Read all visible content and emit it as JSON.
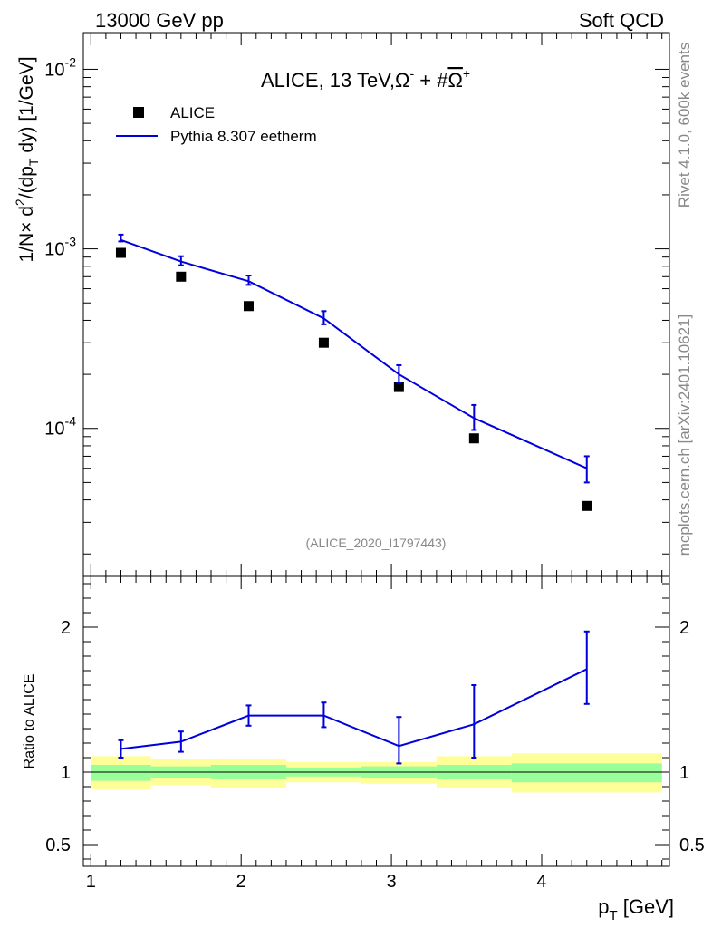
{
  "header": {
    "left": "13000 GeV pp",
    "right": "Soft QCD"
  },
  "side_labels": {
    "rivet": "Rivet 4.1.0,  600k events",
    "mcplots": "mcplots.cern.ch [arXiv:2401.10621]"
  },
  "chart_data": [
    {
      "type": "scatter",
      "panel": "main",
      "title": "ALICE, 13 TeV,Ω⁻ + #Ω̅⁺",
      "title_parts": {
        "main": "ALICE, 13 TeV,Ω",
        "sup1": "-",
        "mid": " + #",
        "omega_bar": "Ω",
        "sup2": "+"
      },
      "ylabel": "1/N× d²/(dp_T dy) [1/GeV]",
      "ylabel_parts": {
        "a": "1/N",
        "times": "×",
        "b": " d",
        "sup": "2",
        "c": "/(dp",
        "sub": "T",
        "d": " dy) [1/GeV]"
      },
      "yscale": "log",
      "ylim": [
        1.5e-05,
        0.016
      ],
      "xlim": [
        0.95,
        4.85
      ],
      "y_ticks": [
        {
          "value": 0.0001,
          "base": "10",
          "exp": "-4"
        },
        {
          "value": 0.001,
          "base": "10",
          "exp": "-3"
        },
        {
          "value": 0.01,
          "base": "10",
          "exp": "-2"
        }
      ],
      "legend_position": "top-left",
      "watermark": "(ALICE_2020_I1797443)",
      "series": [
        {
          "name": "ALICE",
          "kind": "points",
          "color": "#000000",
          "x": [
            1.2,
            1.6,
            2.05,
            2.55,
            3.05,
            3.55,
            4.3
          ],
          "y": [
            0.00095,
            0.0007,
            0.00048,
            0.0003,
            0.00017,
            8.8e-05,
            3.7e-05
          ]
        },
        {
          "name": "Pythia 8.307 eetherm",
          "kind": "line",
          "color": "#0000dd",
          "x": [
            1.2,
            1.6,
            2.05,
            2.55,
            3.05,
            3.55,
            4.3
          ],
          "y": [
            0.00112,
            0.00085,
            0.00066,
            0.00041,
            0.0002,
            0.000114,
            6e-05
          ],
          "err_low": [
            0.0011,
            0.00081,
            0.00063,
            0.00038,
            0.00018,
            9.8e-05,
            5e-05
          ],
          "err_high": [
            0.0012,
            0.00091,
            0.00071,
            0.00045,
            0.000225,
            0.000135,
            7e-05
          ]
        }
      ]
    },
    {
      "type": "line",
      "panel": "ratio",
      "ylabel": "Ratio to ALICE",
      "xlabel": "p_T [GeV]",
      "xlabel_parts": {
        "p": "p",
        "sub": "T",
        "rest": " [GeV]"
      },
      "ylim": [
        0.35,
        2.35
      ],
      "xlim": [
        0.95,
        4.85
      ],
      "x_ticks": [
        "1",
        "2",
        "3",
        "4"
      ],
      "x_tick_values": [
        1,
        2,
        3,
        4
      ],
      "y_ticks": [
        "0.5",
        "1",
        "2"
      ],
      "y_tick_values": [
        0.5,
        1,
        2
      ],
      "reference_line": 1,
      "bands": [
        {
          "x0": 1.0,
          "x1": 1.4,
          "yellow": [
            0.88,
            1.11
          ],
          "green": [
            0.94,
            1.05
          ]
        },
        {
          "x0": 1.4,
          "x1": 1.8,
          "yellow": [
            0.91,
            1.09
          ],
          "green": [
            0.96,
            1.04
          ]
        },
        {
          "x0": 1.8,
          "x1": 2.3,
          "yellow": [
            0.89,
            1.09
          ],
          "green": [
            0.95,
            1.05
          ]
        },
        {
          "x0": 2.3,
          "x1": 2.8,
          "yellow": [
            0.93,
            1.07
          ],
          "green": [
            0.97,
            1.03
          ]
        },
        {
          "x0": 2.8,
          "x1": 3.3,
          "yellow": [
            0.92,
            1.07
          ],
          "green": [
            0.96,
            1.04
          ]
        },
        {
          "x0": 3.3,
          "x1": 3.8,
          "yellow": [
            0.89,
            1.11
          ],
          "green": [
            0.95,
            1.05
          ]
        },
        {
          "x0": 3.8,
          "x1": 4.8,
          "yellow": [
            0.86,
            1.13
          ],
          "green": [
            0.93,
            1.06
          ]
        }
      ],
      "series": [
        {
          "name": "Pythia 8.307 eetherm",
          "color": "#0000dd",
          "x": [
            1.2,
            1.6,
            2.05,
            2.55,
            3.05,
            3.55,
            4.3
          ],
          "y": [
            1.16,
            1.21,
            1.39,
            1.39,
            1.18,
            1.33,
            1.71
          ],
          "err_low": [
            1.1,
            1.14,
            1.32,
            1.31,
            1.06,
            1.1,
            1.47
          ],
          "err_high": [
            1.22,
            1.28,
            1.46,
            1.48,
            1.38,
            1.6,
            1.97
          ]
        }
      ]
    }
  ]
}
